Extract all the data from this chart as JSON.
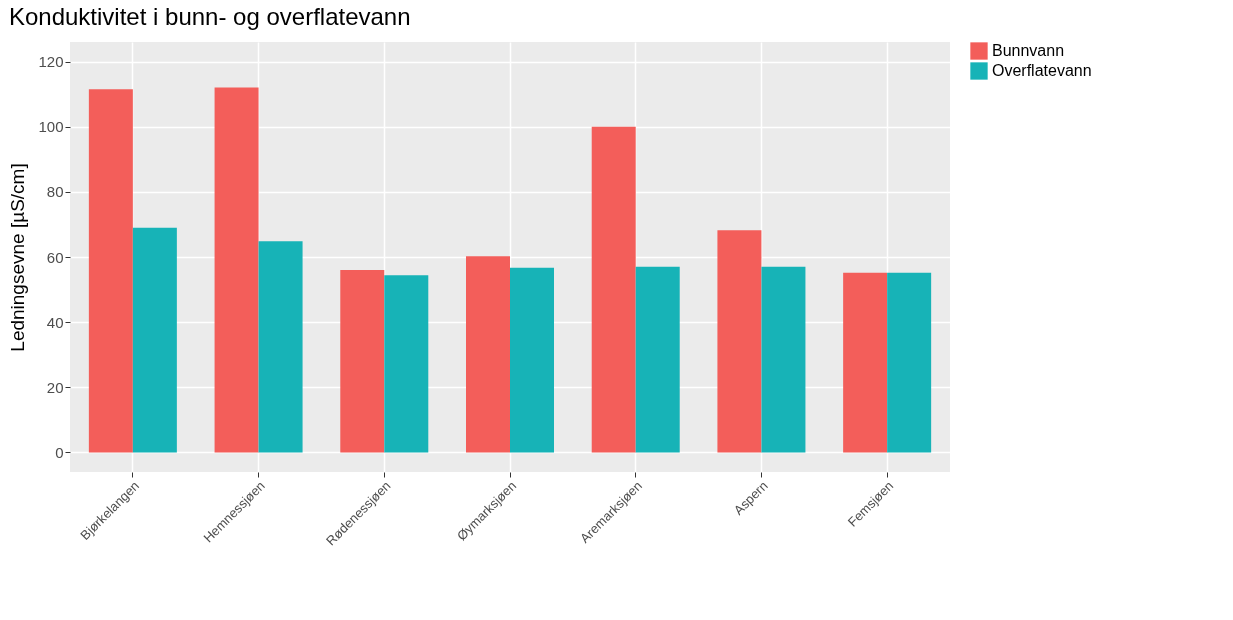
{
  "chart_data": {
    "type": "bar",
    "title": "Konduktivitet i bunn- og overflatevann",
    "ylabel": "Ledningsevne [µS/cm]",
    "categories": [
      "Bjørkelangen",
      "Hemnessjøen",
      "Rødenessjøen",
      "Øymarksjøen",
      "Aremarksjøen",
      "Aspern",
      "Femsjøen"
    ],
    "series": [
      {
        "name": "Bunnvann",
        "color": "#f35e5a",
        "values": [
          111.5,
          112,
          56,
          60.2,
          100,
          68.2,
          55.2
        ]
      },
      {
        "name": "Overflatevann",
        "color": "#17b3b7",
        "values": [
          69,
          64.8,
          54.4,
          56.7,
          57,
          57,
          55.2
        ]
      }
    ],
    "ylim": [
      -6,
      126
    ],
    "yticks": [
      0,
      20,
      40,
      60,
      80,
      100,
      120
    ],
    "grid": true,
    "legend": "right"
  }
}
